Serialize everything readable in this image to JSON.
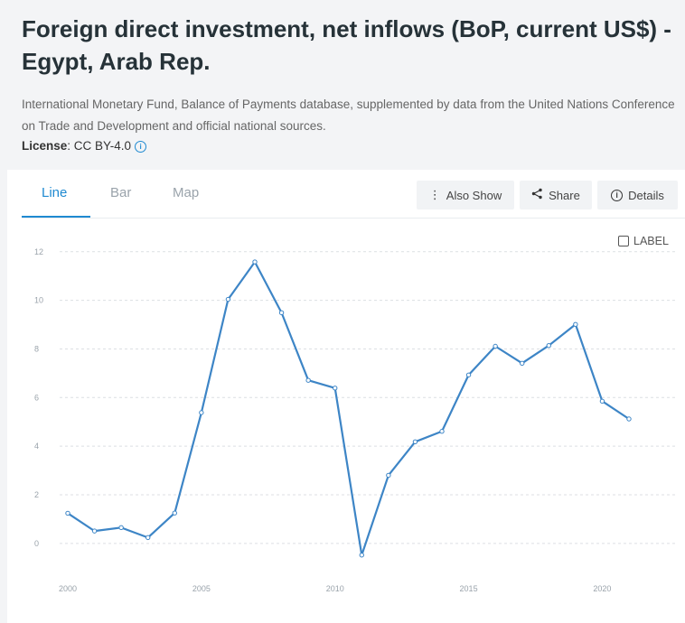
{
  "header": {
    "title": "Foreign direct investment, net inflows (BoP, current US$) - Egypt, Arab Rep.",
    "source": "International Monetary Fund, Balance of Payments database, supplemented by data from the United Nations Conference on Trade and Development and official national sources.",
    "license_label": "License",
    "license_value": ": CC BY-4.0"
  },
  "tabs": [
    {
      "label": "Line",
      "active": true
    },
    {
      "label": "Bar",
      "active": false
    },
    {
      "label": "Map",
      "active": false
    }
  ],
  "toolbar": {
    "also_show_label": "Also Show",
    "share_label": "Share",
    "details_label": "Details"
  },
  "label_toggle": {
    "text": "LABEL",
    "checked": false
  },
  "colors": {
    "accent": "#1f8ad1",
    "line": "#3d85c6"
  },
  "chart_data": {
    "type": "line",
    "title": "",
    "xlabel": "",
    "ylabel": "",
    "x": [
      2000,
      2001,
      2002,
      2003,
      2004,
      2005,
      2006,
      2007,
      2008,
      2009,
      2010,
      2011,
      2012,
      2013,
      2014,
      2015,
      2016,
      2017,
      2018,
      2019,
      2020,
      2021
    ],
    "series": [
      {
        "name": "",
        "values": [
          1.24,
          0.51,
          0.65,
          0.24,
          1.25,
          5.38,
          10.04,
          11.58,
          9.49,
          6.71,
          6.39,
          -0.48,
          2.8,
          4.18,
          4.61,
          6.93,
          8.11,
          7.41,
          8.14,
          9.01,
          5.85,
          5.12
        ]
      }
    ],
    "yticks": [
      0,
      2,
      4,
      6,
      8,
      10,
      12
    ],
    "xticks": [
      2000,
      2005,
      2010,
      2015,
      2020
    ],
    "ylim": [
      -0.6,
      12.4
    ],
    "xlim": [
      2000,
      2021
    ],
    "grid": true,
    "legend": "none"
  }
}
